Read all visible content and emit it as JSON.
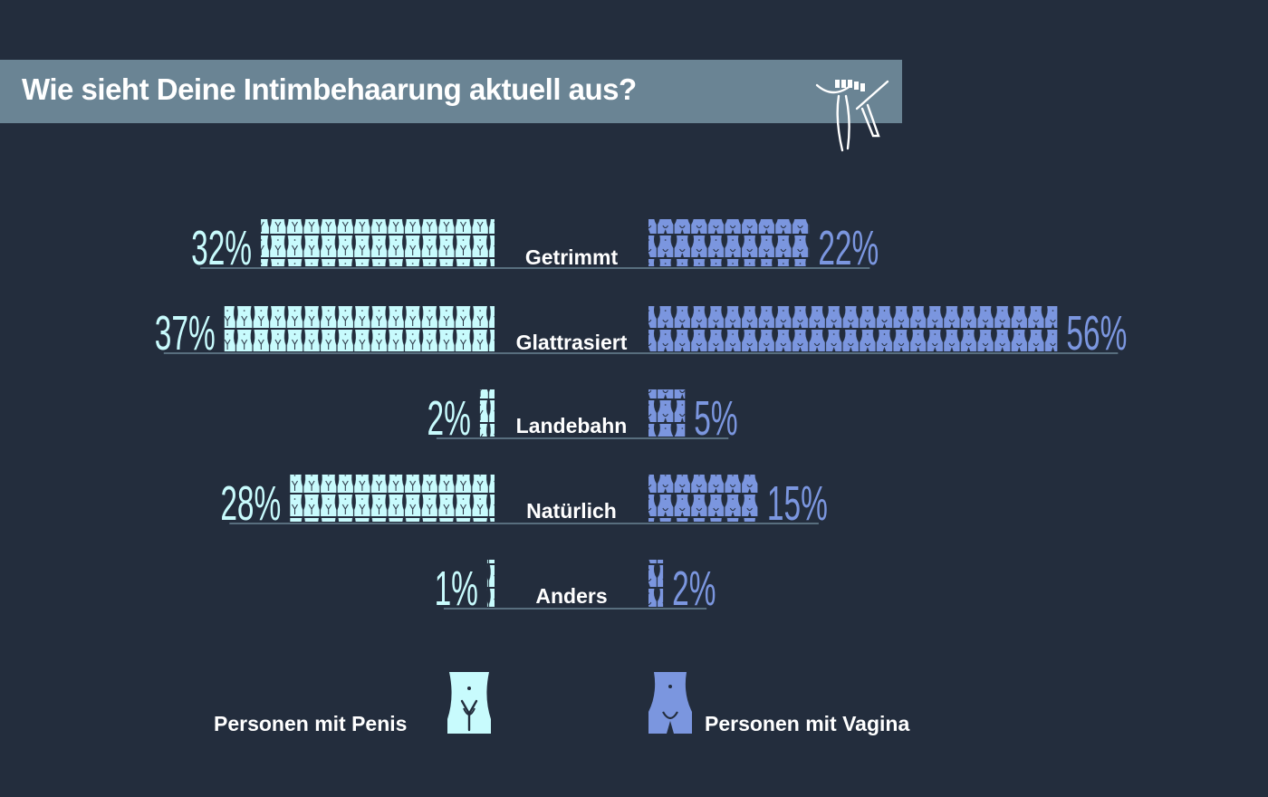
{
  "chart_data": {
    "type": "bar",
    "title": "Wie sieht Deine Intimbehaarung aktuell aus?",
    "categories": [
      "Getrimmt",
      "Glattrasiert",
      "Landebahn",
      "Natürlich",
      "Anders"
    ],
    "series": [
      {
        "name": "Personen mit Penis",
        "values": [
          32,
          37,
          2,
          28,
          1
        ],
        "labels": [
          "32%",
          "37%",
          "2%",
          "28%",
          "1%"
        ],
        "color": "#c8fbfd"
      },
      {
        "name": "Personen mit Vagina",
        "values": [
          22,
          56,
          5,
          15,
          2
        ],
        "labels": [
          "22%",
          "56%",
          "5%",
          "15%",
          "2%"
        ],
        "color": "#7b96df"
      }
    ],
    "legend_placement": "bottom",
    "unit": "%"
  },
  "colors": {
    "background": "#232d3d",
    "title_bar": "#6a8494",
    "axis_line": "#6a8494",
    "penis": "#c8fbfd",
    "vagina": "#7b96df"
  },
  "icons": {
    "title": "razor-icon",
    "penis": "penis-body-icon",
    "vagina": "vagina-body-icon"
  }
}
